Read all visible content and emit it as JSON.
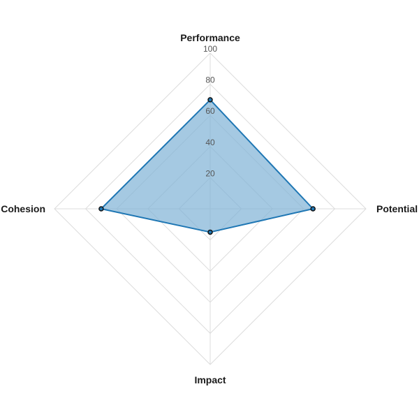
{
  "chart_data": {
    "type": "radar",
    "title": "",
    "axes": [
      "Performance",
      "Potential",
      "Impact",
      "Cohesion"
    ],
    "ticks": [
      20,
      40,
      60,
      80,
      100
    ],
    "range": [
      0,
      100
    ],
    "grid": true,
    "legend": "none",
    "series": [
      {
        "values": [
          70,
          66,
          15,
          70
        ]
      }
    ]
  },
  "colors": {
    "series_fill": "#7fb2d6",
    "series_stroke": "#1f77b4",
    "marker_fill": "#1f77b4",
    "marker_stroke": "#111111",
    "grid": "#dcdcdc"
  }
}
